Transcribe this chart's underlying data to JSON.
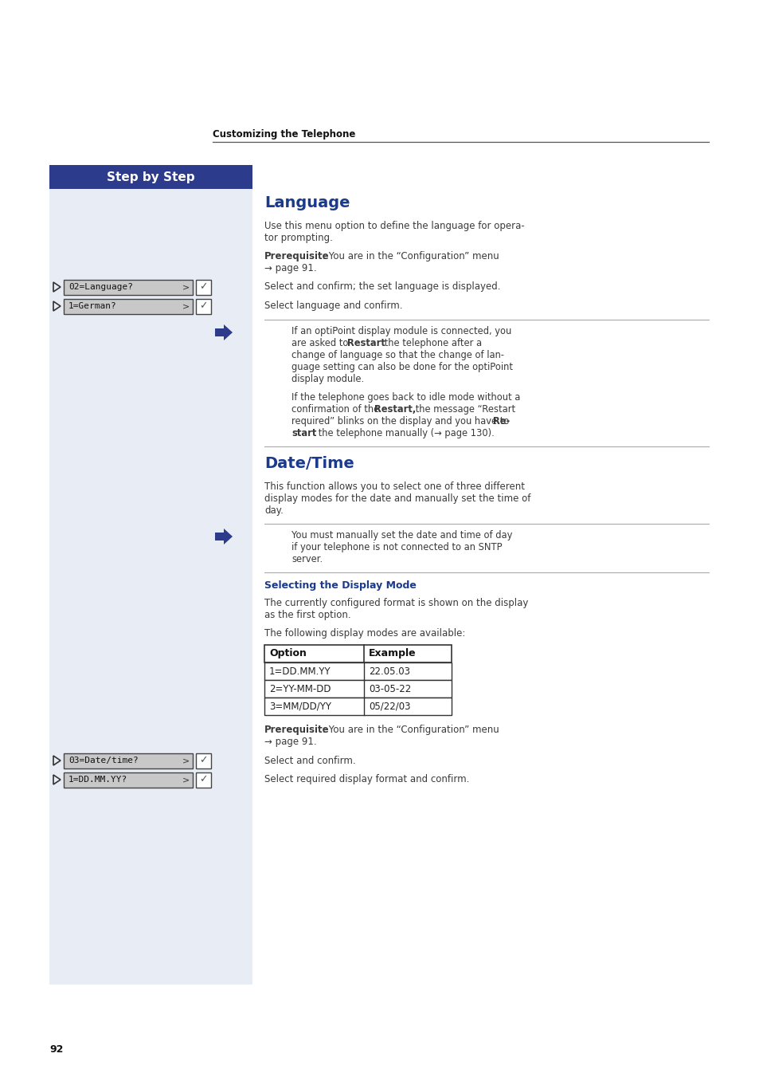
{
  "page_bg": "#ffffff",
  "left_col_bg": "#e8ecf4",
  "header_text": "Customizing the Telephone",
  "step_by_step_bg": "#2d3b8c",
  "step_by_step_text": "Step by Step",
  "section1_title": "Language",
  "section1_title_color": "#1a3a8c",
  "section2_title": "Date/Time",
  "section2_title_color": "#1a3a8c",
  "subsection_title": "Selecting the Display Mode",
  "subsection_title_color": "#1a3a8c",
  "table_headers": [
    "Option",
    "Example"
  ],
  "table_rows": [
    [
      "1=DD.MM.YY",
      "22.05.03"
    ],
    [
      "2=YY-MM-DD",
      "03-05-22"
    ],
    [
      "3=MM/DD/YY",
      "05/22/03"
    ]
  ],
  "menu_item1": "02=Language?",
  "menu_item1_text": "Select and confirm; the set language is displayed.",
  "menu_item2": "1=German?",
  "menu_item2_text": "Select language and confirm.",
  "menu_item3": "03=Date/time?",
  "menu_item3_text": "Select and confirm.",
  "menu_item4": "1=DD.MM.YY?",
  "menu_item4_text": "Select required display format and confirm.",
  "page_number": "92",
  "text_color": "#3a3a3a",
  "note_arrow_color": "#2d3b8c",
  "separator_color": "#aaaaaa",
  "menu_box_color": "#c8c8c8",
  "menu_text_color": "#111111",
  "check_color": "#555555"
}
